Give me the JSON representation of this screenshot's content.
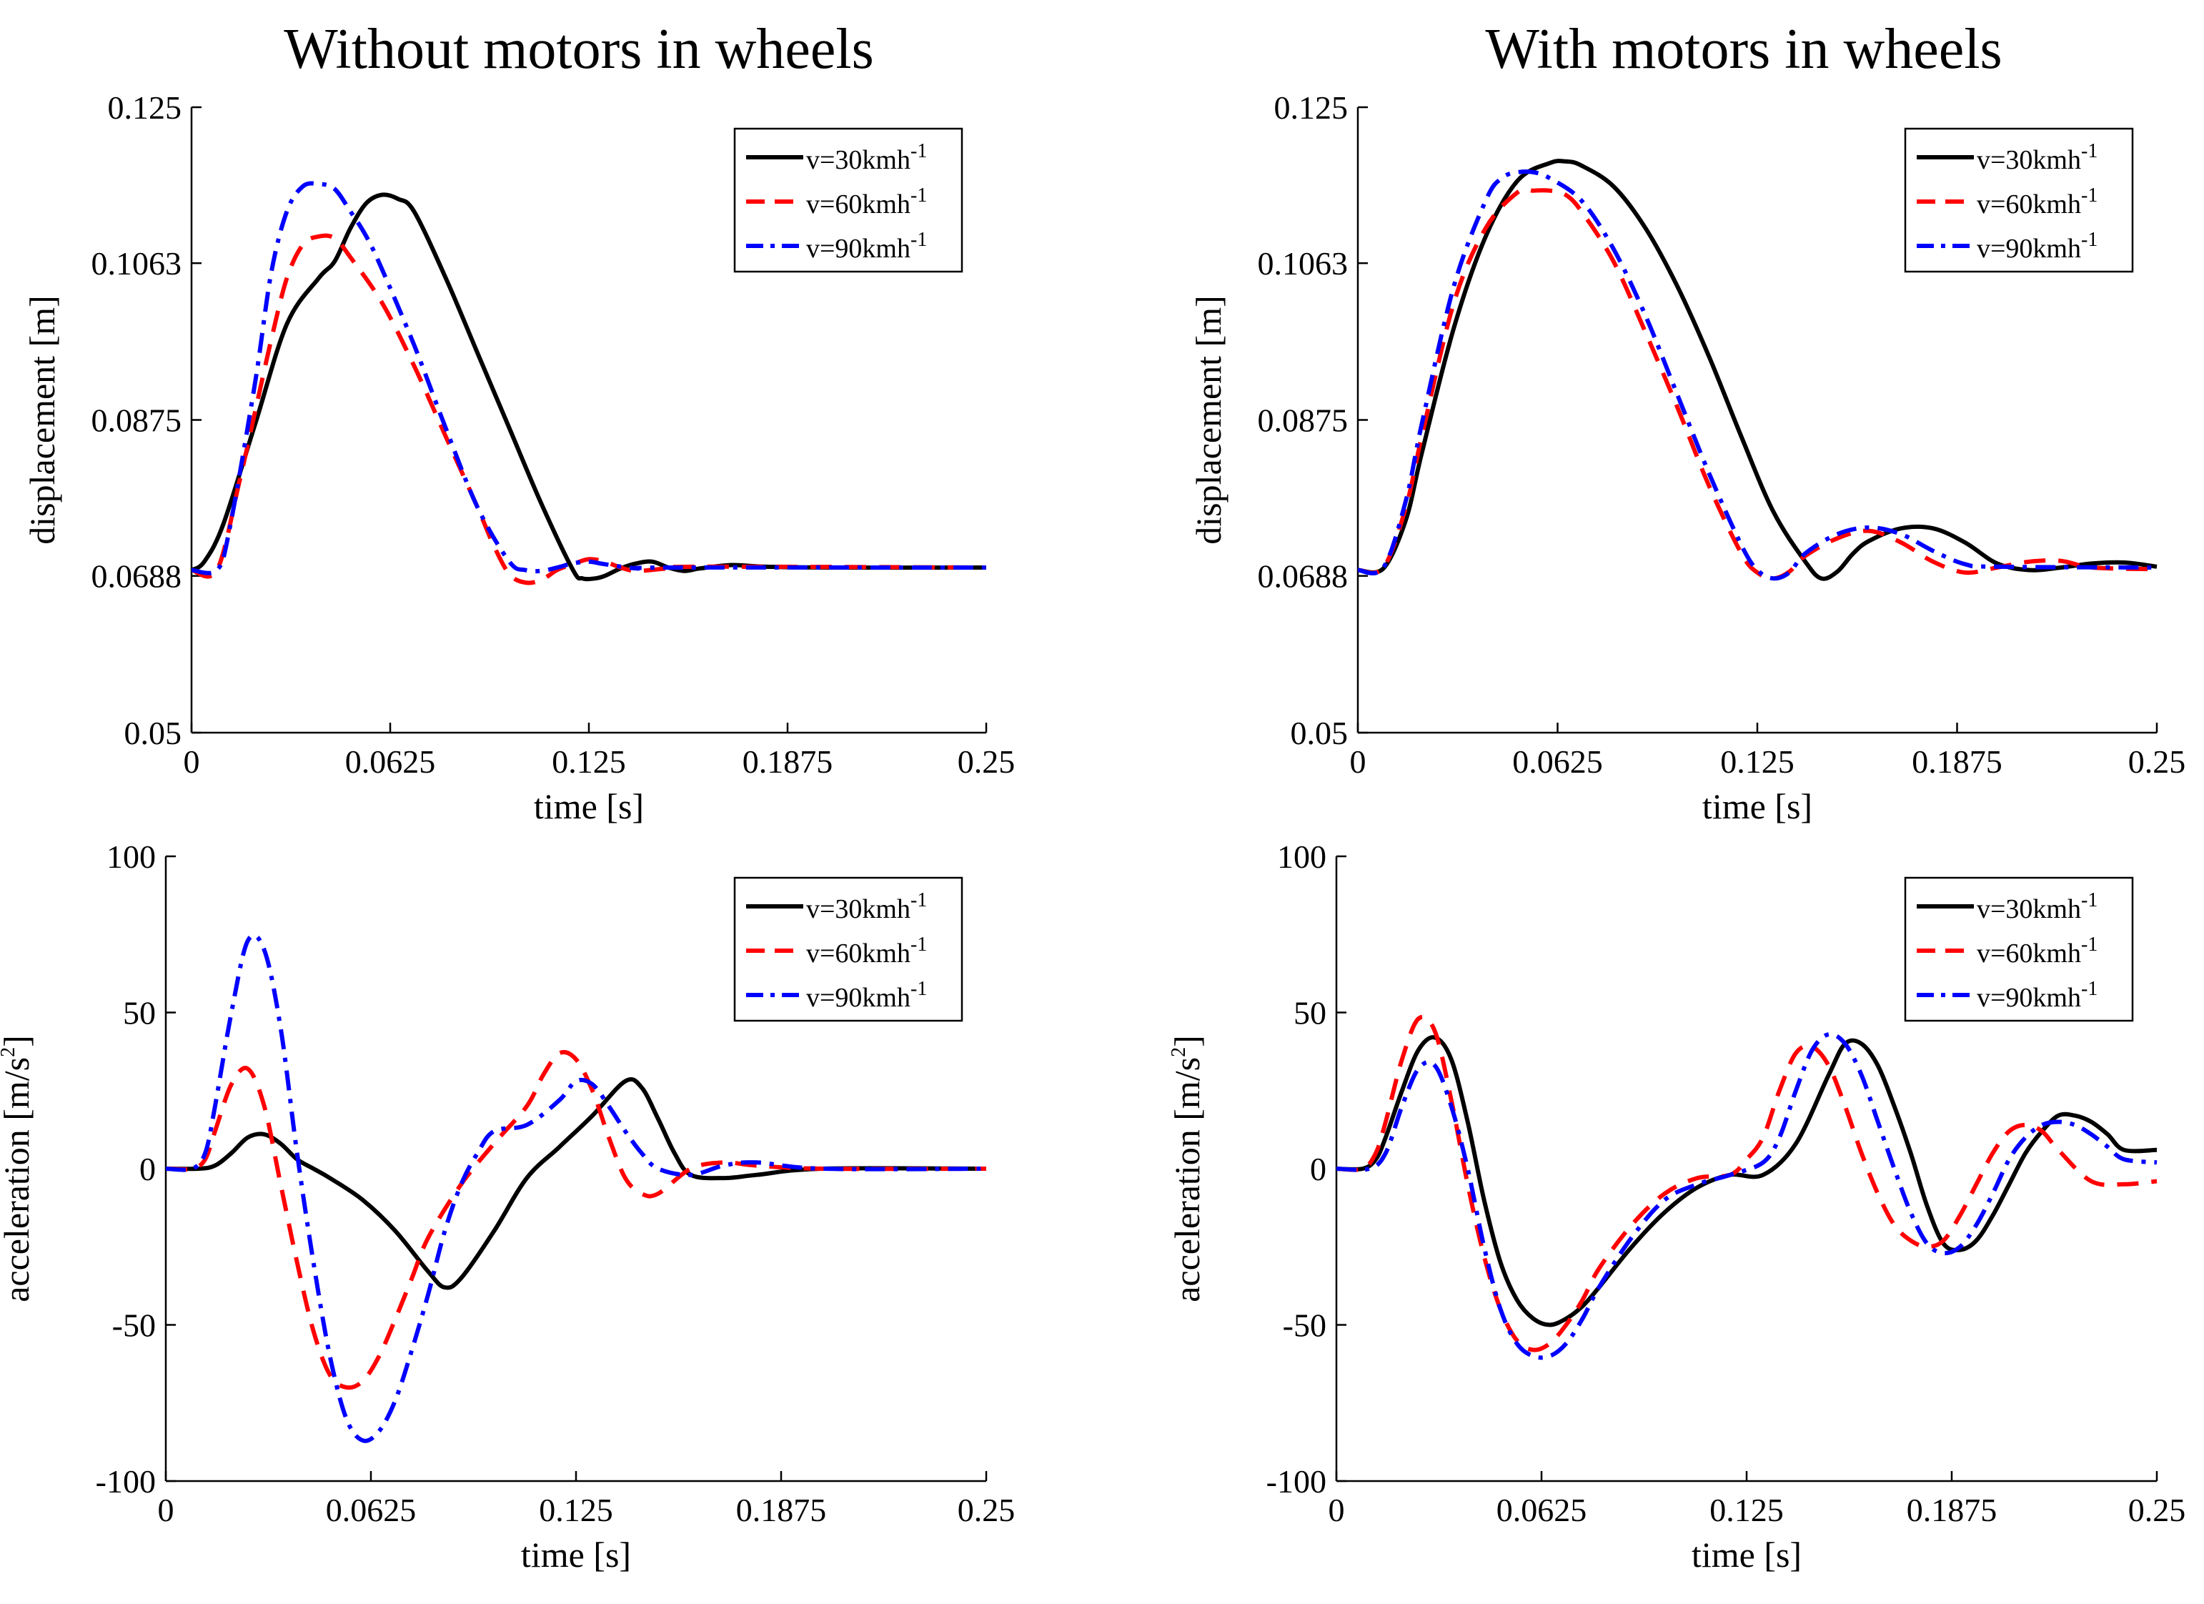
{
  "column_titles": [
    "Without motors in wheels",
    "With motors in wheels"
  ],
  "legend": {
    "prefix": "v=",
    "unit_base": "kmh",
    "unit_exp": "-1",
    "colors": {
      "v30": "#000000",
      "v60": "#ff0000",
      "v90": "#0000ff"
    }
  },
  "chart_data": [
    {
      "id": "disp_without",
      "type": "line",
      "title": "Without motors in wheels",
      "xlabel": "time [s]",
      "ylabel": "displacement [m]",
      "xlim": [
        0,
        0.25
      ],
      "ylim": [
        0.05,
        0.125
      ],
      "xticks": [
        0,
        0.0625,
        0.125,
        0.1875,
        0.25
      ],
      "xtick_labels": [
        "0",
        "0.0625",
        "0.125",
        "0.1875",
        "0.25"
      ],
      "yticks": [
        0.05,
        0.0688,
        0.0875,
        0.1063,
        0.125
      ],
      "ytick_labels": [
        "0.05",
        "0.0688",
        "0.0875",
        "0.1063",
        "0.125"
      ],
      "legend_position": "top-right",
      "series": [
        {
          "key": "v30",
          "name": "v=30kmh-1",
          "speed": "30",
          "style": "solid",
          "x": [
            0,
            0.004,
            0.01,
            0.02,
            0.03,
            0.04,
            0.045,
            0.05,
            0.055,
            0.06,
            0.065,
            0.07,
            0.08,
            0.09,
            0.1,
            0.11,
            0.12,
            0.123,
            0.127,
            0.13,
            0.135,
            0.14,
            0.145,
            0.15,
            0.155,
            0.16,
            0.17,
            0.18,
            0.2,
            0.25
          ],
          "y": [
            0.0695,
            0.0705,
            0.075,
            0.087,
            0.099,
            0.1045,
            0.1065,
            0.1105,
            0.1135,
            0.1145,
            0.114,
            0.1125,
            0.1045,
            0.0955,
            0.0865,
            0.0775,
            0.0695,
            0.0685,
            0.0685,
            0.0688,
            0.0697,
            0.0703,
            0.0705,
            0.0698,
            0.0694,
            0.0697,
            0.0701,
            0.0699,
            0.0698,
            0.0698
          ]
        },
        {
          "key": "v60",
          "name": "v=60kmh-1",
          "speed": "60",
          "style": "dashed",
          "x": [
            0,
            0.008,
            0.015,
            0.02,
            0.025,
            0.03,
            0.035,
            0.04,
            0.045,
            0.05,
            0.06,
            0.07,
            0.08,
            0.09,
            0.095,
            0.1,
            0.105,
            0.11,
            0.115,
            0.12,
            0.125,
            0.13,
            0.135,
            0.14,
            0.15,
            0.16,
            0.25
          ],
          "y": [
            0.0695,
            0.0695,
            0.08,
            0.0885,
            0.097,
            0.1045,
            0.1085,
            0.1095,
            0.1093,
            0.107,
            0.1015,
            0.094,
            0.0855,
            0.077,
            0.0725,
            0.069,
            0.068,
            0.0683,
            0.0695,
            0.0702,
            0.0708,
            0.0705,
            0.0698,
            0.0694,
            0.0697,
            0.0699,
            0.0698
          ]
        },
        {
          "key": "v90",
          "name": "v=90kmh-1",
          "speed": "90",
          "style": "dashdot",
          "x": [
            0,
            0.008,
            0.012,
            0.02,
            0.025,
            0.03,
            0.035,
            0.04,
            0.045,
            0.05,
            0.055,
            0.06,
            0.07,
            0.08,
            0.09,
            0.1,
            0.105,
            0.11,
            0.115,
            0.12,
            0.125,
            0.13,
            0.14,
            0.15,
            0.25
          ],
          "y": [
            0.0695,
            0.0695,
            0.0745,
            0.092,
            0.105,
            0.1125,
            0.1155,
            0.1158,
            0.1152,
            0.1125,
            0.1095,
            0.1055,
            0.0965,
            0.0865,
            0.077,
            0.0705,
            0.0695,
            0.0694,
            0.0698,
            0.0703,
            0.0705,
            0.0702,
            0.0697,
            0.0698,
            0.0698
          ]
        }
      ]
    },
    {
      "id": "disp_with",
      "type": "line",
      "title": "With motors in wheels",
      "xlabel": "time [s]",
      "ylabel": "displacement [m]",
      "xlim": [
        0,
        0.25
      ],
      "ylim": [
        0.05,
        0.125
      ],
      "xticks": [
        0,
        0.0625,
        0.125,
        0.1875,
        0.25
      ],
      "xtick_labels": [
        "0",
        "0.0625",
        "0.125",
        "0.1875",
        "0.25"
      ],
      "yticks": [
        0.05,
        0.0688,
        0.0875,
        0.1063,
        0.125
      ],
      "ytick_labels": [
        "0.05",
        "0.0688",
        "0.0875",
        "0.1063",
        "0.125"
      ],
      "legend_position": "top-right",
      "series": [
        {
          "key": "v30",
          "name": "v=30kmh-1",
          "speed": "30",
          "style": "solid",
          "x": [
            0,
            0.008,
            0.015,
            0.02,
            0.03,
            0.04,
            0.05,
            0.06,
            0.065,
            0.07,
            0.08,
            0.09,
            0.1,
            0.11,
            0.12,
            0.13,
            0.14,
            0.145,
            0.15,
            0.155,
            0.16,
            0.17,
            0.18,
            0.19,
            0.2,
            0.21,
            0.22,
            0.23,
            0.24,
            0.25
          ],
          "y": [
            0.0695,
            0.0697,
            0.0755,
            0.0835,
            0.0985,
            0.1095,
            0.1162,
            0.1183,
            0.1185,
            0.118,
            0.1155,
            0.1105,
            0.1035,
            0.095,
            0.0855,
            0.0765,
            0.0705,
            0.0685,
            0.0693,
            0.0715,
            0.073,
            0.0745,
            0.0745,
            0.0728,
            0.0703,
            0.0695,
            0.0698,
            0.0703,
            0.0704,
            0.0699
          ]
        },
        {
          "key": "v60",
          "name": "v=60kmh-1",
          "speed": "60",
          "style": "dashed",
          "x": [
            0,
            0.008,
            0.015,
            0.02,
            0.03,
            0.04,
            0.05,
            0.055,
            0.06,
            0.065,
            0.07,
            0.08,
            0.09,
            0.1,
            0.11,
            0.12,
            0.125,
            0.13,
            0.135,
            0.14,
            0.15,
            0.16,
            0.17,
            0.18,
            0.19,
            0.2,
            0.21,
            0.22,
            0.23,
            0.25
          ],
          "y": [
            0.0695,
            0.0698,
            0.077,
            0.0855,
            0.1015,
            0.1105,
            0.1148,
            0.115,
            0.115,
            0.1145,
            0.1125,
            0.1065,
            0.098,
            0.089,
            0.0795,
            0.0715,
            0.0692,
            0.0685,
            0.0693,
            0.0712,
            0.0733,
            0.0742,
            0.0728,
            0.0705,
            0.0692,
            0.0698,
            0.0705,
            0.0706,
            0.0698,
            0.0696
          ]
        },
        {
          "key": "v90",
          "name": "v=90kmh-1",
          "speed": "90",
          "style": "dashdot",
          "x": [
            0,
            0.008,
            0.015,
            0.02,
            0.03,
            0.04,
            0.045,
            0.05,
            0.055,
            0.06,
            0.07,
            0.08,
            0.09,
            0.1,
            0.11,
            0.12,
            0.125,
            0.13,
            0.135,
            0.14,
            0.15,
            0.16,
            0.17,
            0.18,
            0.19,
            0.2,
            0.25
          ],
          "y": [
            0.0695,
            0.0698,
            0.0778,
            0.087,
            0.1035,
            0.1138,
            0.1165,
            0.1172,
            0.1172,
            0.1165,
            0.1138,
            0.108,
            0.1,
            0.0905,
            0.081,
            0.0725,
            0.0695,
            0.0685,
            0.0692,
            0.0715,
            0.0738,
            0.0746,
            0.0738,
            0.0718,
            0.0702,
            0.0699,
            0.0698
          ]
        }
      ]
    },
    {
      "id": "acc_without",
      "type": "line",
      "title": "",
      "xlabel": "time [s]",
      "ylabel_main": "acceleration [m/s",
      "ylabel_exp": "2",
      "ylabel_tail": "]",
      "xlim": [
        0,
        0.25
      ],
      "ylim": [
        -100,
        100
      ],
      "xticks": [
        0,
        0.0625,
        0.125,
        0.1875,
        0.25
      ],
      "xtick_labels": [
        "0",
        "0.0625",
        "0.125",
        "0.1875",
        "0.25"
      ],
      "yticks": [
        -100,
        -50,
        0,
        50,
        100
      ],
      "ytick_labels": [
        "-100",
        "-50",
        "0",
        "50",
        "100"
      ],
      "legend_position": "top-right",
      "series": [
        {
          "key": "v30",
          "name": "v=30kmh-1",
          "speed": "30",
          "style": "solid",
          "x": [
            0,
            0.01,
            0.015,
            0.02,
            0.025,
            0.03,
            0.035,
            0.04,
            0.045,
            0.05,
            0.06,
            0.07,
            0.08,
            0.085,
            0.09,
            0.1,
            0.11,
            0.12,
            0.13,
            0.14,
            0.145,
            0.15,
            0.155,
            0.16,
            0.17,
            0.18,
            0.2,
            0.25
          ],
          "y": [
            0,
            0,
            1,
            5,
            10,
            11,
            8,
            3,
            0,
            -3,
            -10,
            -20,
            -33,
            -38,
            -35,
            -20,
            -3,
            7,
            17,
            28,
            26,
            16,
            5,
            -2,
            -3,
            -2,
            0,
            0
          ]
        },
        {
          "key": "v60",
          "name": "v=60kmh-1",
          "speed": "60",
          "style": "dashed",
          "x": [
            0,
            0.008,
            0.012,
            0.015,
            0.02,
            0.025,
            0.03,
            0.035,
            0.04,
            0.045,
            0.05,
            0.055,
            0.06,
            0.065,
            0.07,
            0.075,
            0.08,
            0.09,
            0.1,
            0.11,
            0.115,
            0.12,
            0.125,
            0.13,
            0.135,
            0.14,
            0.145,
            0.15,
            0.16,
            0.17,
            0.18,
            0.2,
            0.25
          ],
          "y": [
            0,
            0,
            3,
            12,
            27,
            32,
            20,
            -5,
            -30,
            -52,
            -66,
            -70,
            -68,
            -60,
            -48,
            -35,
            -22,
            -5,
            8,
            20,
            30,
            37,
            35,
            25,
            10,
            -3,
            -8,
            -8,
            0,
            2,
            1,
            0,
            0
          ]
        },
        {
          "key": "v90",
          "name": "v=90kmh-1",
          "speed": "90",
          "style": "dashdot",
          "x": [
            0,
            0.008,
            0.012,
            0.015,
            0.02,
            0.025,
            0.03,
            0.035,
            0.04,
            0.045,
            0.05,
            0.055,
            0.06,
            0.065,
            0.07,
            0.075,
            0.08,
            0.085,
            0.09,
            0.095,
            0.1,
            0.11,
            0.12,
            0.125,
            0.13,
            0.135,
            0.14,
            0.145,
            0.15,
            0.16,
            0.17,
            0.18,
            0.2,
            0.25
          ],
          "y": [
            0,
            0,
            5,
            20,
            50,
            73,
            70,
            45,
            5,
            -30,
            -60,
            -80,
            -87,
            -84,
            -74,
            -58,
            -40,
            -20,
            -5,
            5,
            12,
            14,
            22,
            28,
            27,
            20,
            12,
            5,
            0,
            -2,
            1,
            2,
            0,
            0
          ]
        }
      ]
    },
    {
      "id": "acc_with",
      "type": "line",
      "title": "",
      "xlabel": "time [s]",
      "ylabel_main": "acceleration [m/s",
      "ylabel_exp": "2",
      "ylabel_tail": "]",
      "xlim": [
        0,
        0.25
      ],
      "ylim": [
        -100,
        100
      ],
      "xticks": [
        0,
        0.0625,
        0.125,
        0.1875,
        0.25
      ],
      "xtick_labels": [
        "0",
        "0.0625",
        "0.125",
        "0.1875",
        "0.25"
      ],
      "yticks": [
        -100,
        -50,
        0,
        50,
        100
      ],
      "ytick_labels": [
        "-100",
        "-50",
        "0",
        "50",
        "100"
      ],
      "legend_position": "top-right",
      "series": [
        {
          "key": "v30",
          "name": "v=30kmh-1",
          "speed": "30",
          "style": "solid",
          "x": [
            0,
            0.008,
            0.012,
            0.015,
            0.02,
            0.025,
            0.03,
            0.035,
            0.04,
            0.045,
            0.05,
            0.055,
            0.06,
            0.065,
            0.07,
            0.075,
            0.08,
            0.09,
            0.1,
            0.11,
            0.12,
            0.13,
            0.14,
            0.15,
            0.155,
            0.16,
            0.165,
            0.17,
            0.175,
            0.18,
            0.185,
            0.19,
            0.195,
            0.2,
            0.205,
            0.21,
            0.215,
            0.22,
            0.225,
            0.23,
            0.235,
            0.24,
            0.25
          ],
          "y": [
            0,
            0,
            3,
            10,
            25,
            38,
            42,
            35,
            15,
            -10,
            -30,
            -42,
            -48,
            -50,
            -48,
            -44,
            -38,
            -25,
            -14,
            -6,
            -2,
            -2,
            8,
            30,
            40,
            40,
            33,
            20,
            5,
            -12,
            -24,
            -26,
            -23,
            -15,
            -5,
            5,
            12,
            17,
            17,
            15,
            11,
            6,
            6
          ]
        },
        {
          "key": "v60",
          "name": "v=60kmh-1",
          "speed": "60",
          "style": "dashed",
          "x": [
            0,
            0.008,
            0.012,
            0.015,
            0.02,
            0.025,
            0.03,
            0.035,
            0.04,
            0.045,
            0.05,
            0.055,
            0.06,
            0.065,
            0.07,
            0.075,
            0.08,
            0.09,
            0.1,
            0.11,
            0.12,
            0.125,
            0.13,
            0.135,
            0.14,
            0.145,
            0.15,
            0.155,
            0.16,
            0.165,
            0.17,
            0.175,
            0.18,
            0.185,
            0.19,
            0.195,
            0.2,
            0.205,
            0.21,
            0.215,
            0.22,
            0.23,
            0.24,
            0.25
          ],
          "y": [
            0,
            0,
            5,
            15,
            35,
            48,
            44,
            22,
            -5,
            -28,
            -45,
            -55,
            -58,
            -56,
            -50,
            -42,
            -32,
            -18,
            -8,
            -3,
            -2,
            3,
            10,
            25,
            37,
            39,
            33,
            20,
            5,
            -8,
            -18,
            -23,
            -25,
            -23,
            -15,
            -5,
            5,
            12,
            14,
            12,
            6,
            -4,
            -5,
            -4
          ]
        },
        {
          "key": "v90",
          "name": "v=90kmh-1",
          "speed": "90",
          "style": "dashdot",
          "x": [
            0,
            0.01,
            0.015,
            0.02,
            0.025,
            0.03,
            0.035,
            0.04,
            0.045,
            0.05,
            0.055,
            0.06,
            0.065,
            0.07,
            0.075,
            0.08,
            0.09,
            0.1,
            0.11,
            0.12,
            0.13,
            0.135,
            0.14,
            0.145,
            0.15,
            0.155,
            0.16,
            0.165,
            0.17,
            0.175,
            0.18,
            0.185,
            0.19,
            0.195,
            0.2,
            0.205,
            0.21,
            0.215,
            0.22,
            0.225,
            0.23,
            0.235,
            0.24,
            0.25
          ],
          "y": [
            0,
            0,
            5,
            20,
            32,
            33,
            20,
            0,
            -25,
            -45,
            -56,
            -60,
            -60,
            -56,
            -48,
            -38,
            -22,
            -10,
            -5,
            -2,
            2,
            10,
            25,
            38,
            43,
            40,
            30,
            15,
            0,
            -14,
            -24,
            -27,
            -25,
            -18,
            -8,
            3,
            10,
            14,
            15,
            14,
            11,
            7,
            3,
            2
          ]
        }
      ]
    }
  ]
}
